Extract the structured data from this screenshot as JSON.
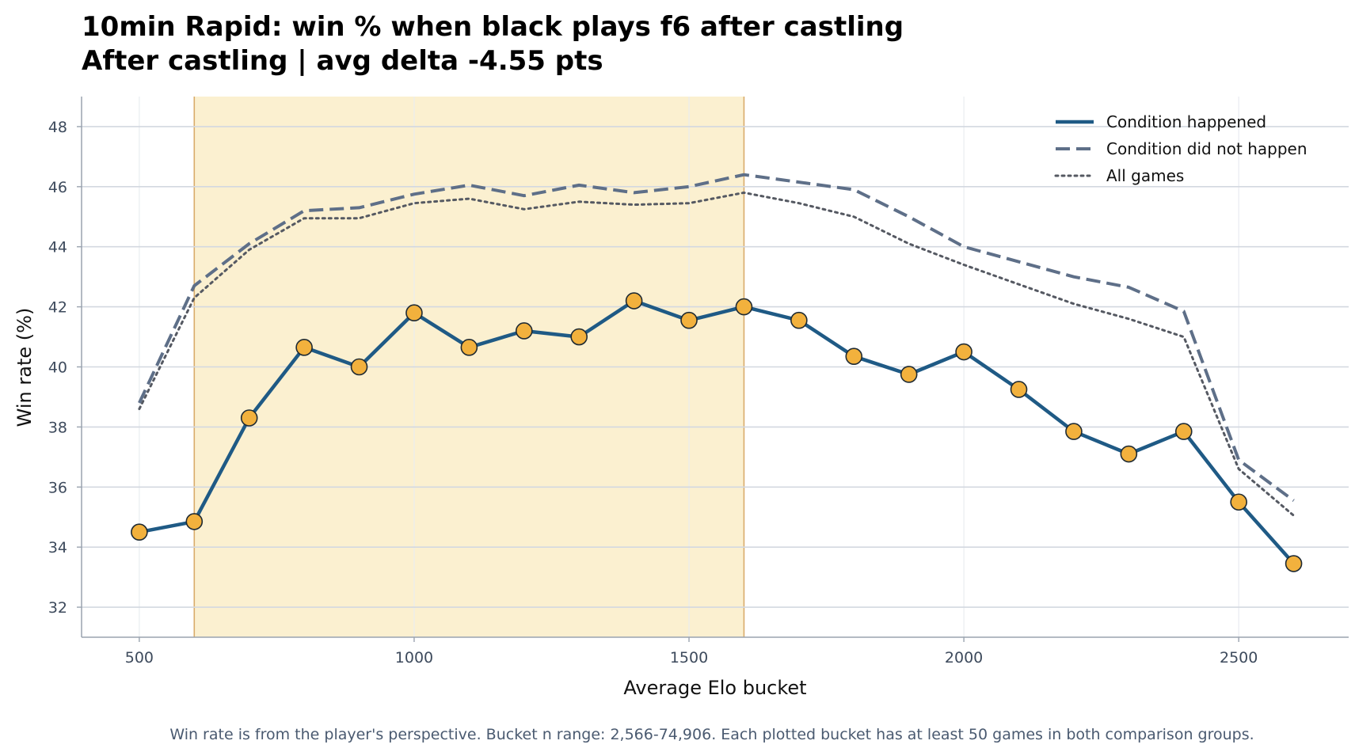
{
  "chart_data": {
    "type": "line",
    "title": "10min Rapid: win % when black plays f6 after castling",
    "subtitle": "After castling | avg delta -4.55 pts",
    "xlabel": "Average Elo bucket",
    "ylabel": "Win rate (%)",
    "footnote": "Win rate is from the player's perspective. Bucket n range: 2,566-74,906. Each plotted bucket has at least 50 games in both comparison groups.",
    "xlim": [
      395,
      2700
    ],
    "ylim": [
      31,
      49
    ],
    "xticks": [
      500,
      1000,
      1500,
      2000,
      2500
    ],
    "yticks": [
      32,
      34,
      36,
      38,
      40,
      42,
      44,
      46,
      48
    ],
    "grid": true,
    "legend_position": "top-right",
    "highlight_range": [
      600,
      1600
    ],
    "x": [
      500,
      600,
      700,
      800,
      900,
      1000,
      1100,
      1200,
      1300,
      1400,
      1500,
      1600,
      1700,
      1800,
      1900,
      2000,
      2100,
      2200,
      2300,
      2400,
      2500,
      2600
    ],
    "series": [
      {
        "name": "Condition happened",
        "style": "solid",
        "color": "#1f5a85",
        "marker_color": "#f2b13d",
        "values": [
          34.5,
          34.85,
          38.3,
          40.65,
          40.0,
          41.8,
          40.65,
          41.2,
          41.0,
          42.2,
          41.55,
          42.0,
          41.55,
          40.35,
          39.75,
          40.5,
          39.25,
          37.85,
          37.1,
          37.85,
          35.5,
          33.45
        ]
      },
      {
        "name": "Condition did not happen",
        "style": "dashed",
        "color": "#5e6f88",
        "values": [
          38.8,
          42.7,
          44.1,
          45.2,
          45.3,
          45.75,
          46.05,
          45.7,
          46.05,
          45.8,
          46.0,
          46.4,
          46.15,
          45.9,
          45.0,
          44.0,
          43.5,
          43.0,
          42.65,
          41.85,
          36.9,
          35.55
        ]
      },
      {
        "name": "All games",
        "style": "dotted",
        "color": "#555962",
        "values": [
          38.6,
          42.3,
          43.9,
          44.95,
          44.95,
          45.45,
          45.6,
          45.25,
          45.5,
          45.4,
          45.45,
          45.8,
          45.45,
          45.0,
          44.1,
          43.4,
          42.75,
          42.1,
          41.6,
          41.0,
          36.6,
          35.05
        ]
      }
    ],
    "colors": {
      "highlight_fill": "#fbf0d0",
      "highlight_edge": "#d9ab6a",
      "grid": "#d3d8e0",
      "axis": "#9aa3af"
    }
  }
}
